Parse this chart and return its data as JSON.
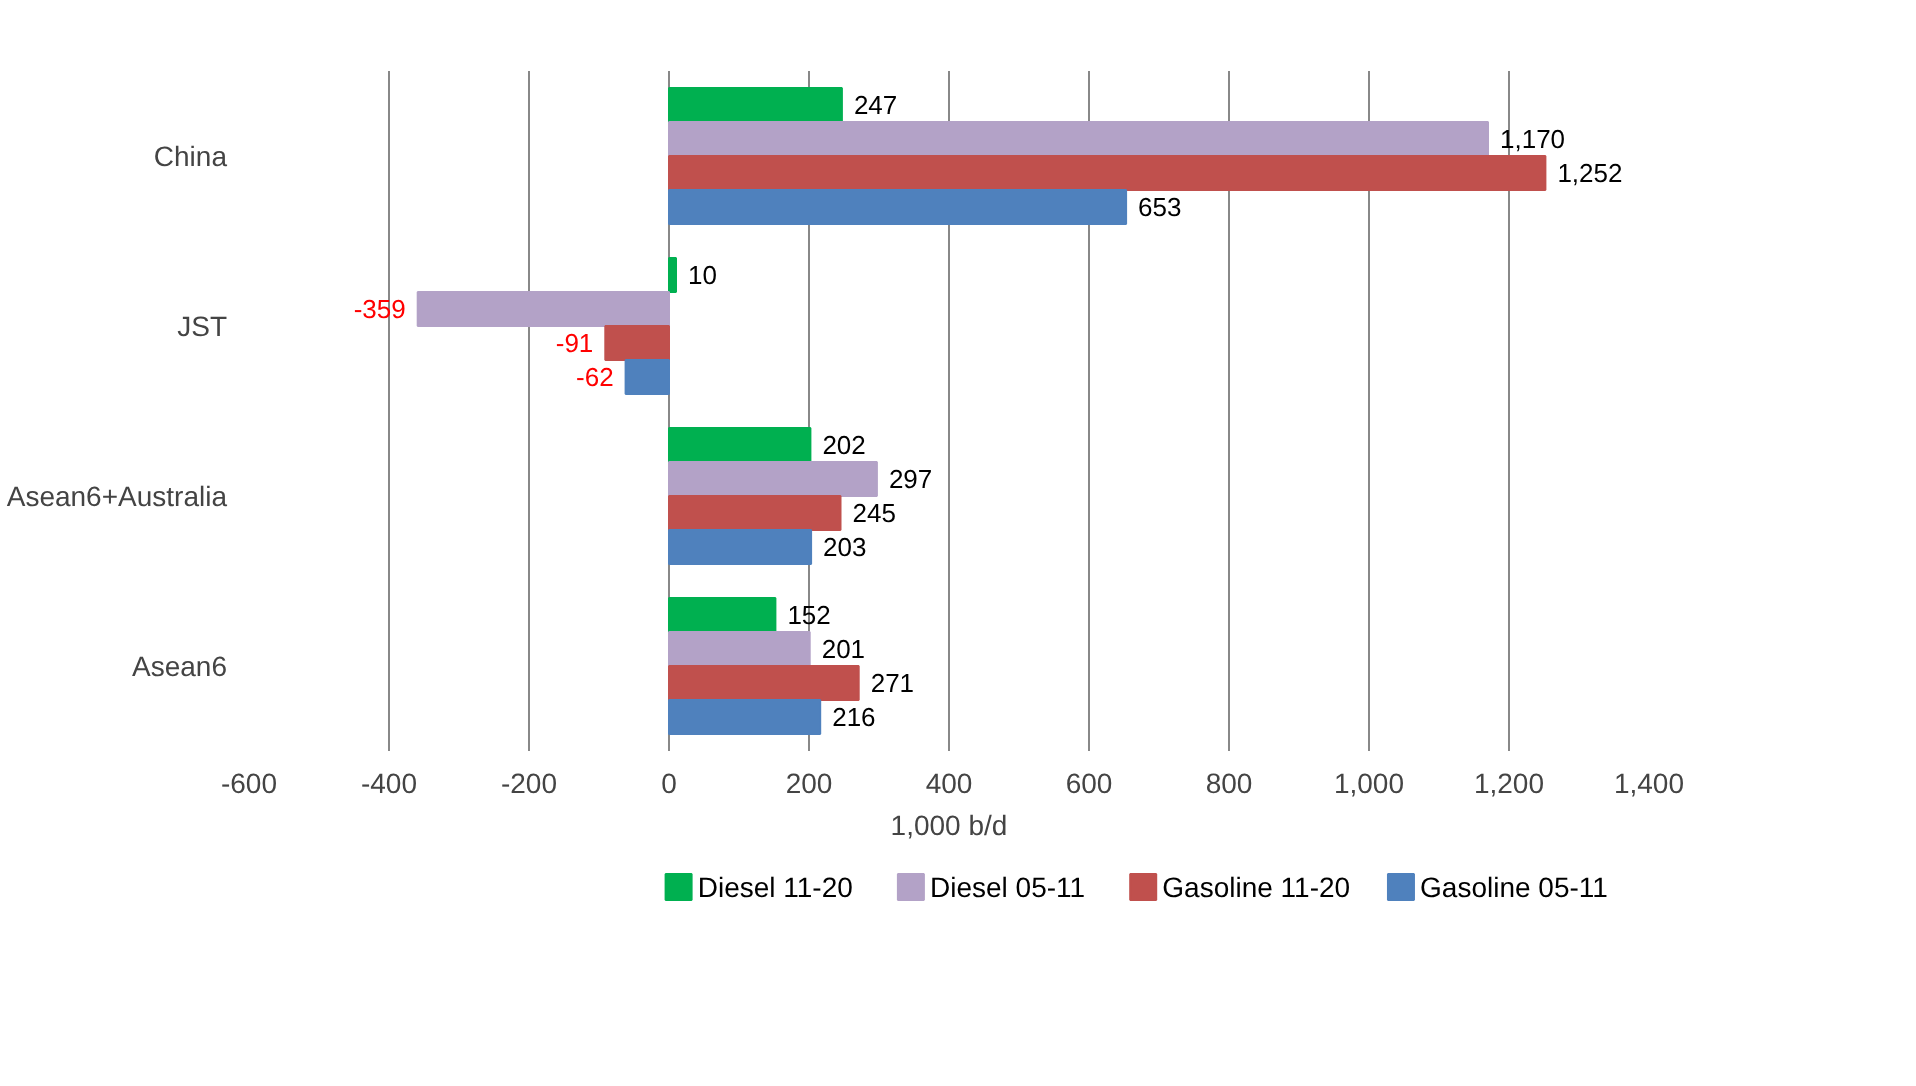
{
  "chart_data": {
    "type": "bar",
    "orientation": "horizontal",
    "xlabel": "1,000 b/d",
    "categories": [
      "China",
      "JST",
      "Asean6+Australia",
      "Asean6"
    ],
    "series": [
      {
        "name": "Diesel 11-20",
        "color": "#00b050",
        "values": [
          247,
          10,
          202,
          152
        ],
        "value_labels": [
          "247",
          "10",
          "202",
          "152"
        ]
      },
      {
        "name": "Diesel 05-11",
        "color": "#b3a2c7",
        "values": [
          1170,
          -359,
          297,
          201
        ],
        "value_labels": [
          "1,170",
          "-359",
          "297",
          "201"
        ]
      },
      {
        "name": "Gasoline 11-20",
        "color": "#c0504d",
        "values": [
          1252,
          -91,
          245,
          271
        ],
        "value_labels": [
          "1,252",
          "-91",
          "245",
          "271"
        ]
      },
      {
        "name": "Gasoline 05-11",
        "color": "#4f81bd",
        "values": [
          653,
          -62,
          203,
          216
        ],
        "value_labels": [
          "653",
          "-62",
          "203",
          "216"
        ]
      }
    ],
    "xlim": [
      -600,
      1400
    ],
    "xticks": [
      -600,
      -400,
      -200,
      0,
      200,
      400,
      600,
      800,
      {
        "value": 1000,
        "label": "1,000"
      },
      {
        "value": 1200,
        "label": "1,200"
      },
      {
        "value": 1400,
        "label": "1,400"
      }
    ],
    "grid": "x",
    "legend": "bottom"
  }
}
